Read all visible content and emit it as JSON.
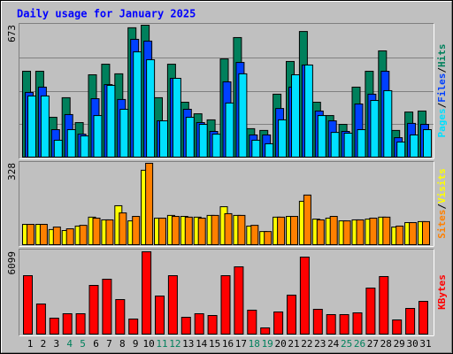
{
  "title": "Daily usage for January 2025",
  "legend_separator": "/",
  "chart_data": [
    {
      "type": "bar",
      "ylim": [
        0,
        673
      ],
      "yticks": [
        673
      ],
      "series": [
        {
          "name": "Pages",
          "color": "#00e0ff",
          "values": [
            312,
            312,
            86,
            140,
            108,
            212,
            366,
            244,
            537,
            497,
            185,
            402,
            203,
            167,
            117,
            276,
            425,
            86,
            68,
            190,
            420,
            470,
            212,
            126,
            122,
            140,
            289,
            339,
            77,
            113,
            140
          ]
        },
        {
          "name": "Files",
          "color": "#0040ff",
          "values": [
            330,
            357,
            140,
            217,
            117,
            298,
            370,
            294,
            601,
            592,
            185,
            402,
            244,
            176,
            131,
            384,
            483,
            113,
            113,
            248,
            357,
            470,
            235,
            185,
            131,
            271,
            321,
            438,
            99,
            172,
            167
          ]
        },
        {
          "name": "Hits",
          "color": "#00805c",
          "values": [
            438,
            438,
            203,
            303,
            176,
            420,
            474,
            425,
            660,
            673,
            303,
            474,
            280,
            221,
            190,
            501,
            610,
            145,
            136,
            321,
            488,
            641,
            280,
            212,
            167,
            357,
            438,
            542,
            136,
            230,
            235
          ]
        }
      ]
    },
    {
      "type": "bar",
      "ylim": [
        0,
        328
      ],
      "yticks": [
        328
      ],
      "series": [
        {
          "name": "Sites",
          "color": "#ff8000",
          "values": [
            82,
            82,
            71,
            64,
            78,
            107,
            100,
            128,
            114,
            328,
            107,
            114,
            111,
            107,
            118,
            125,
            118,
            78,
            53,
            111,
            114,
            200,
            100,
            114,
            96,
            100,
            107,
            111,
            75,
            89,
            93
          ]
        },
        {
          "name": "Visits",
          "color": "#ffff00",
          "values": [
            82,
            82,
            61,
            57,
            75,
            111,
            100,
            157,
            96,
            300,
            107,
            118,
            114,
            111,
            118,
            153,
            118,
            75,
            53,
            111,
            114,
            175,
            103,
            107,
            96,
            100,
            103,
            111,
            71,
            89,
            93
          ]
        }
      ]
    },
    {
      "type": "bar",
      "ylim": [
        0,
        6099
      ],
      "yticks": [
        6099
      ],
      "categories": [
        "1",
        "2",
        "3",
        "4",
        "5",
        "6",
        "7",
        "8",
        "9",
        "10",
        "11",
        "12",
        "13",
        "14",
        "15",
        "16",
        "17",
        "18",
        "19",
        "20",
        "21",
        "22",
        "23",
        "24",
        "25",
        "26",
        "27",
        "28",
        "29",
        "30",
        "31"
      ],
      "category_colors": [
        "#000000",
        "#000000",
        "#000000",
        "#00805c",
        "#00805c",
        "#000000",
        "#000000",
        "#000000",
        "#000000",
        "#000000",
        "#00805c",
        "#00805c",
        "#000000",
        "#000000",
        "#000000",
        "#000000",
        "#000000",
        "#00805c",
        "#00805c",
        "#000000",
        "#000000",
        "#000000",
        "#000000",
        "#000000",
        "#00805c",
        "#00805c",
        "#000000",
        "#000000",
        "#000000",
        "#000000",
        "#000000"
      ],
      "series": [
        {
          "name": "KBytes",
          "color": "#ff0000",
          "values": [
            4328,
            2230,
            1180,
            1508,
            1508,
            3607,
            4066,
            2558,
            1115,
            6099,
            2820,
            4328,
            1246,
            1508,
            1377,
            4328,
            4984,
            1771,
            459,
            1640,
            2886,
            5705,
            1836,
            1443,
            1443,
            1574,
            3410,
            4263,
            1049,
            1902,
            2426
          ]
        }
      ]
    }
  ]
}
